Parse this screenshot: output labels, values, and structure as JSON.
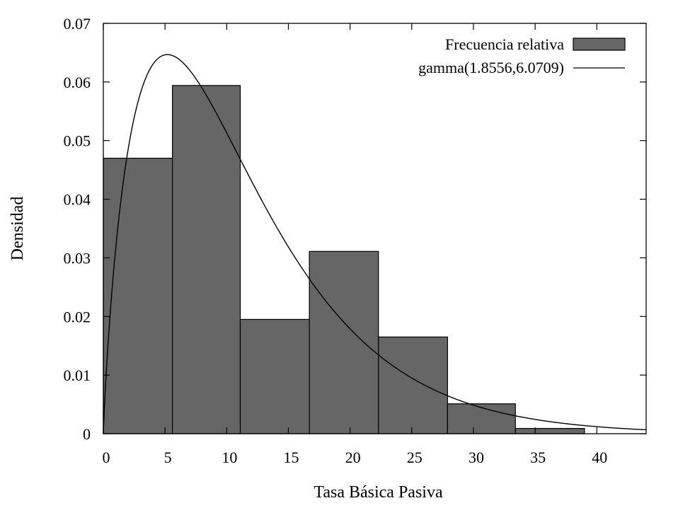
{
  "chart_data": {
    "type": "bar",
    "xlabel": "Tasa Básica Pasiva",
    "ylabel": "Densidad",
    "xlim": [
      0,
      44
    ],
    "ylim": [
      0,
      0.07
    ],
    "x_ticks": [
      "0",
      "5",
      "10",
      "15",
      "20",
      "25",
      "30",
      "35",
      "40"
    ],
    "y_ticks": [
      "0",
      "0.01",
      "0.02",
      "0.03",
      "0.04",
      "0.05",
      "0.06",
      "0.07"
    ],
    "grid": false,
    "legend_position": "top-right",
    "series": [
      {
        "name": "Frecuencia relativa",
        "kind": "histogram",
        "color": "#666666",
        "bins": [
          {
            "from": 0.0,
            "to": 5.6,
            "value": 0.047
          },
          {
            "from": 5.6,
            "to": 11.1,
            "value": 0.0594
          },
          {
            "from": 11.1,
            "to": 16.7,
            "value": 0.0195
          },
          {
            "from": 16.7,
            "to": 22.3,
            "value": 0.0311
          },
          {
            "from": 22.3,
            "to": 27.9,
            "value": 0.0165
          },
          {
            "from": 27.9,
            "to": 33.4,
            "value": 0.0051
          },
          {
            "from": 33.4,
            "to": 39.0,
            "value": 0.0009
          }
        ]
      },
      {
        "name": "gamma(1.8556,6.0709)",
        "kind": "line",
        "color": "#000000",
        "distribution": {
          "shape": 1.8556,
          "scale": 6.0709
        }
      }
    ]
  }
}
